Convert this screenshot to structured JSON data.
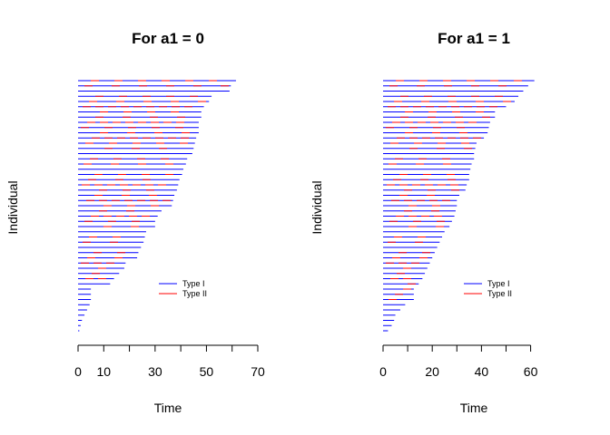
{
  "chart_data": [
    {
      "type": "line",
      "title": "For a1 = 0",
      "xlabel": "Time",
      "ylabel": "Individual",
      "xlim": [
        0,
        70
      ],
      "xticks": [
        0,
        10,
        20,
        30,
        40,
        50,
        60,
        70
      ],
      "xtick_labels": [
        "0",
        "10",
        "",
        "30",
        "",
        "50",
        "",
        "70"
      ],
      "legend": [
        {
          "label": "Type I",
          "color": "#0000ff"
        },
        {
          "label": "Type II",
          "color": "#ff0000"
        }
      ],
      "individual_count": 49,
      "follow_up_end_times": [
        0.5,
        1,
        1.5,
        2.5,
        3.5,
        4.5,
        5,
        5,
        5,
        12.5,
        14,
        16,
        18,
        18.5,
        23,
        23.5,
        24.5,
        25.5,
        26,
        26.5,
        30,
        30,
        31,
        32.5,
        36.5,
        37,
        37.5,
        38.5,
        39,
        39.5,
        40.5,
        41,
        42,
        42.5,
        44.5,
        45,
        45.5,
        46,
        47,
        47,
        47,
        48,
        48,
        49,
        51,
        52,
        59,
        59.5,
        61.5
      ]
    },
    {
      "type": "line",
      "title": "For a1 = 1",
      "xlabel": "Time",
      "ylabel": "Individual",
      "xlim": [
        0,
        62
      ],
      "xticks": [
        0,
        10,
        20,
        30,
        40,
        50,
        60
      ],
      "xtick_labels": [
        "0",
        "",
        "20",
        "",
        "40",
        "",
        "60"
      ],
      "legend": [
        {
          "label": "Type I",
          "color": "#0000ff"
        },
        {
          "label": "Type II",
          "color": "#ff0000"
        }
      ],
      "individual_count": 49,
      "follow_up_end_times": [
        2,
        3.5,
        4.5,
        5,
        7,
        9,
        12.5,
        12.5,
        12.5,
        14.5,
        16,
        17,
        18,
        19,
        20,
        21,
        22,
        23,
        24,
        25,
        27,
        28,
        29,
        29.5,
        30,
        30,
        31,
        33.5,
        34,
        35,
        35,
        35.5,
        36,
        37,
        37,
        37.5,
        38,
        41,
        42.5,
        43,
        43.5,
        45.5,
        45.5,
        50,
        53.5,
        55,
        57,
        59,
        61.5
      ]
    }
  ]
}
